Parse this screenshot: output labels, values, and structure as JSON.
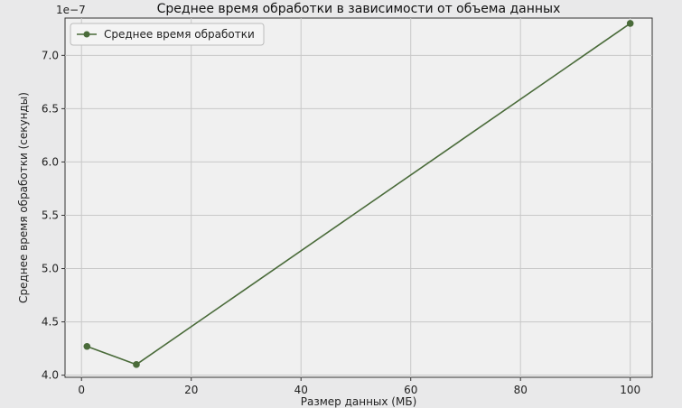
{
  "chart_data": {
    "type": "line",
    "title": "Среднее время обработки в зависимости от объема данных",
    "xlabel": "Размер данных (МБ)",
    "ylabel": "Среднее время обработки (секунды)",
    "offset_label": "1e−7",
    "xlim": [
      -3,
      104
    ],
    "ylim": [
      3.98,
      7.35
    ],
    "x_ticks": [
      0,
      20,
      40,
      60,
      80,
      100
    ],
    "y_ticks": [
      4.0,
      4.5,
      5.0,
      5.5,
      6.0,
      6.5,
      7.0
    ],
    "x_tick_labels": [
      "0",
      "20",
      "40",
      "60",
      "80",
      "100"
    ],
    "y_tick_labels": [
      "4.0",
      "4.5",
      "5.0",
      "5.5",
      "6.0",
      "6.5",
      "7.0"
    ],
    "grid": true,
    "legend_position": "top-left",
    "series": [
      {
        "name": "Среднее время обработки",
        "color": "#4a6b3a",
        "x": [
          1,
          10,
          100
        ],
        "y": [
          4.27,
          4.1,
          7.3
        ]
      }
    ]
  }
}
